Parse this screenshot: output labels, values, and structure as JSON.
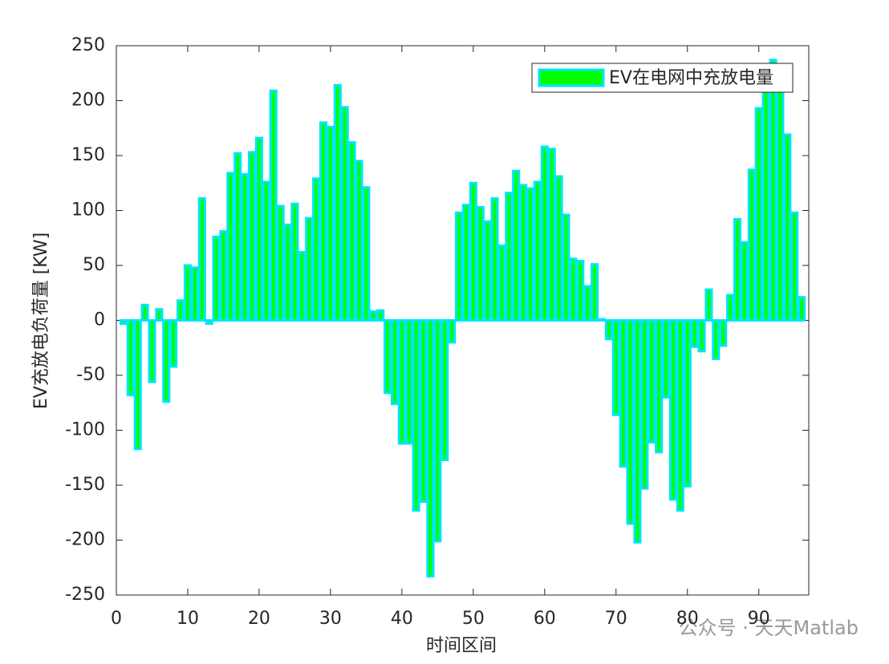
{
  "chart_data": {
    "type": "bar",
    "xlabel": "时间区间",
    "ylabel": "EV充放电负荷量 [KW]",
    "legend_position": "upper right",
    "watermark": "公众号 · 天天Matlab",
    "series": [
      {
        "name": "EV在电网中充放电量",
        "color": "#00ff00",
        "edge_color": "#00e5ff",
        "values": [
          -3,
          -68,
          -117,
          14,
          -56,
          10,
          -74,
          -42,
          18,
          50,
          48,
          111,
          -3,
          76,
          81,
          134,
          152,
          133,
          153,
          166,
          126,
          209,
          104,
          87,
          106,
          62,
          93,
          129,
          180,
          176,
          214,
          194,
          162,
          145,
          121,
          8,
          9,
          -66,
          -76,
          -112,
          -112,
          -173,
          -165,
          -233,
          -201,
          -127,
          -20,
          98,
          105,
          125,
          103,
          90,
          111,
          68,
          116,
          136,
          123,
          120,
          126,
          158,
          156,
          131,
          96,
          56,
          54,
          31,
          51,
          1,
          -17,
          -86,
          -133,
          -185,
          -202,
          -153,
          -111,
          -120,
          -70,
          -163,
          -173,
          -151,
          -24,
          -28,
          28,
          -35,
          -23,
          23,
          92,
          71,
          137,
          193,
          213,
          237,
          210,
          169,
          98,
          21
        ]
      }
    ],
    "x": [
      1,
      2,
      3,
      4,
      5,
      6,
      7,
      8,
      9,
      10,
      11,
      12,
      13,
      14,
      15,
      16,
      17,
      18,
      19,
      20,
      21,
      22,
      23,
      24,
      25,
      26,
      27,
      28,
      29,
      30,
      31,
      32,
      33,
      34,
      35,
      36,
      37,
      38,
      39,
      40,
      41,
      42,
      43,
      44,
      45,
      46,
      47,
      48,
      49,
      50,
      51,
      52,
      53,
      54,
      55,
      56,
      57,
      58,
      59,
      60,
      61,
      62,
      63,
      64,
      65,
      66,
      67,
      68,
      69,
      70,
      71,
      72,
      73,
      74,
      75,
      76,
      77,
      78,
      79,
      80,
      81,
      82,
      83,
      84,
      85,
      86,
      87,
      88,
      89,
      90,
      91,
      92,
      93,
      94,
      95,
      96
    ],
    "xlim": [
      0,
      97
    ],
    "xticks": [
      0,
      10,
      20,
      30,
      40,
      50,
      60,
      70,
      80,
      90
    ],
    "ylim": [
      -250,
      250
    ],
    "yticks": [
      -250,
      -200,
      -150,
      -100,
      -50,
      0,
      50,
      100,
      150,
      200,
      250
    ]
  }
}
